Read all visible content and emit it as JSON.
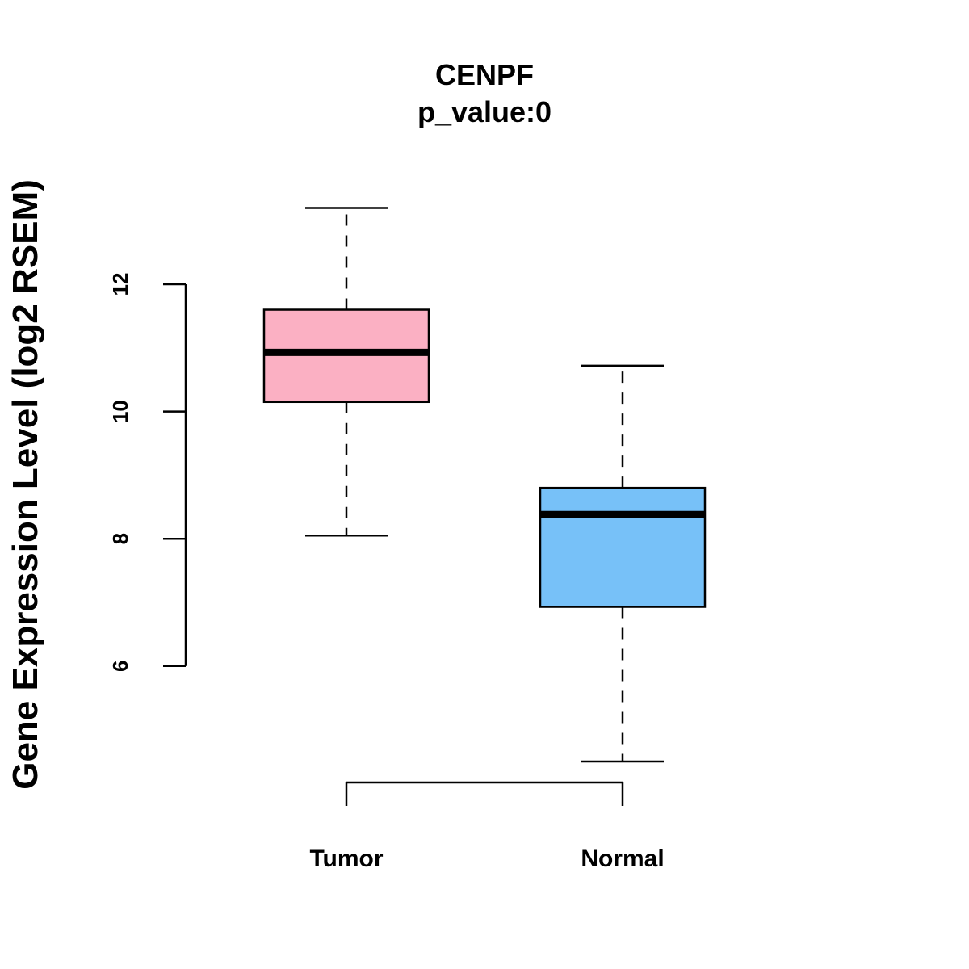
{
  "chart_data": {
    "type": "boxplot",
    "title": "CENPF",
    "subtitle": "p_value:0",
    "ylabel": "Gene Expression Level (log2 RSEM)",
    "xlabel": "",
    "ylim": [
      3.5,
      14.5
    ],
    "yticks": [
      6,
      8,
      10,
      12
    ],
    "categories": [
      "Tumor",
      "Normal"
    ],
    "series": [
      {
        "name": "Tumor",
        "whisker_low": 8.05,
        "q1": 10.15,
        "median": 10.93,
        "q3": 11.6,
        "whisker_high": 13.2,
        "color": "#FBB0C3"
      },
      {
        "name": "Normal",
        "whisker_low": 4.5,
        "q1": 6.93,
        "median": 8.38,
        "q3": 8.8,
        "whisker_high": 10.72,
        "color": "#77C1F8"
      }
    ]
  }
}
